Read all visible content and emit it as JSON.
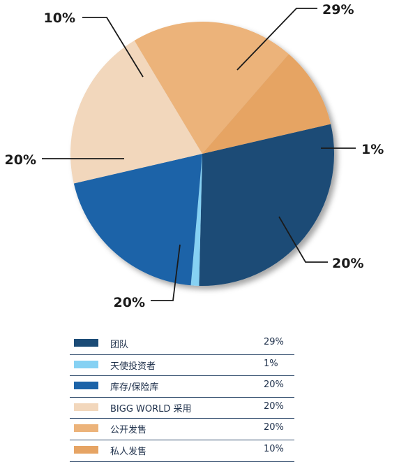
{
  "chart_data": {
    "type": "pie",
    "slices": [
      {
        "name": "团队",
        "value": 29,
        "label": "29%",
        "color": "#1b4b76"
      },
      {
        "name": "天使投资者",
        "value": 1,
        "label": "1%",
        "color": "#86d1f3"
      },
      {
        "name": "库存/保险库",
        "value": 20,
        "label": "20%",
        "color": "#1c63a8"
      },
      {
        "name": "BIGG WORLD 采用",
        "value": 20,
        "label": "20%",
        "color": "#f2d7bc"
      },
      {
        "name": "公开发售",
        "value": 20,
        "label": "20%",
        "color": "#ecb37a"
      },
      {
        "name": "私人发售",
        "value": 10,
        "label": "10%",
        "color": "#e6a464"
      }
    ],
    "start_angle_deg": -13,
    "direction": "clockwise",
    "legend": {
      "position": "bottom"
    }
  }
}
